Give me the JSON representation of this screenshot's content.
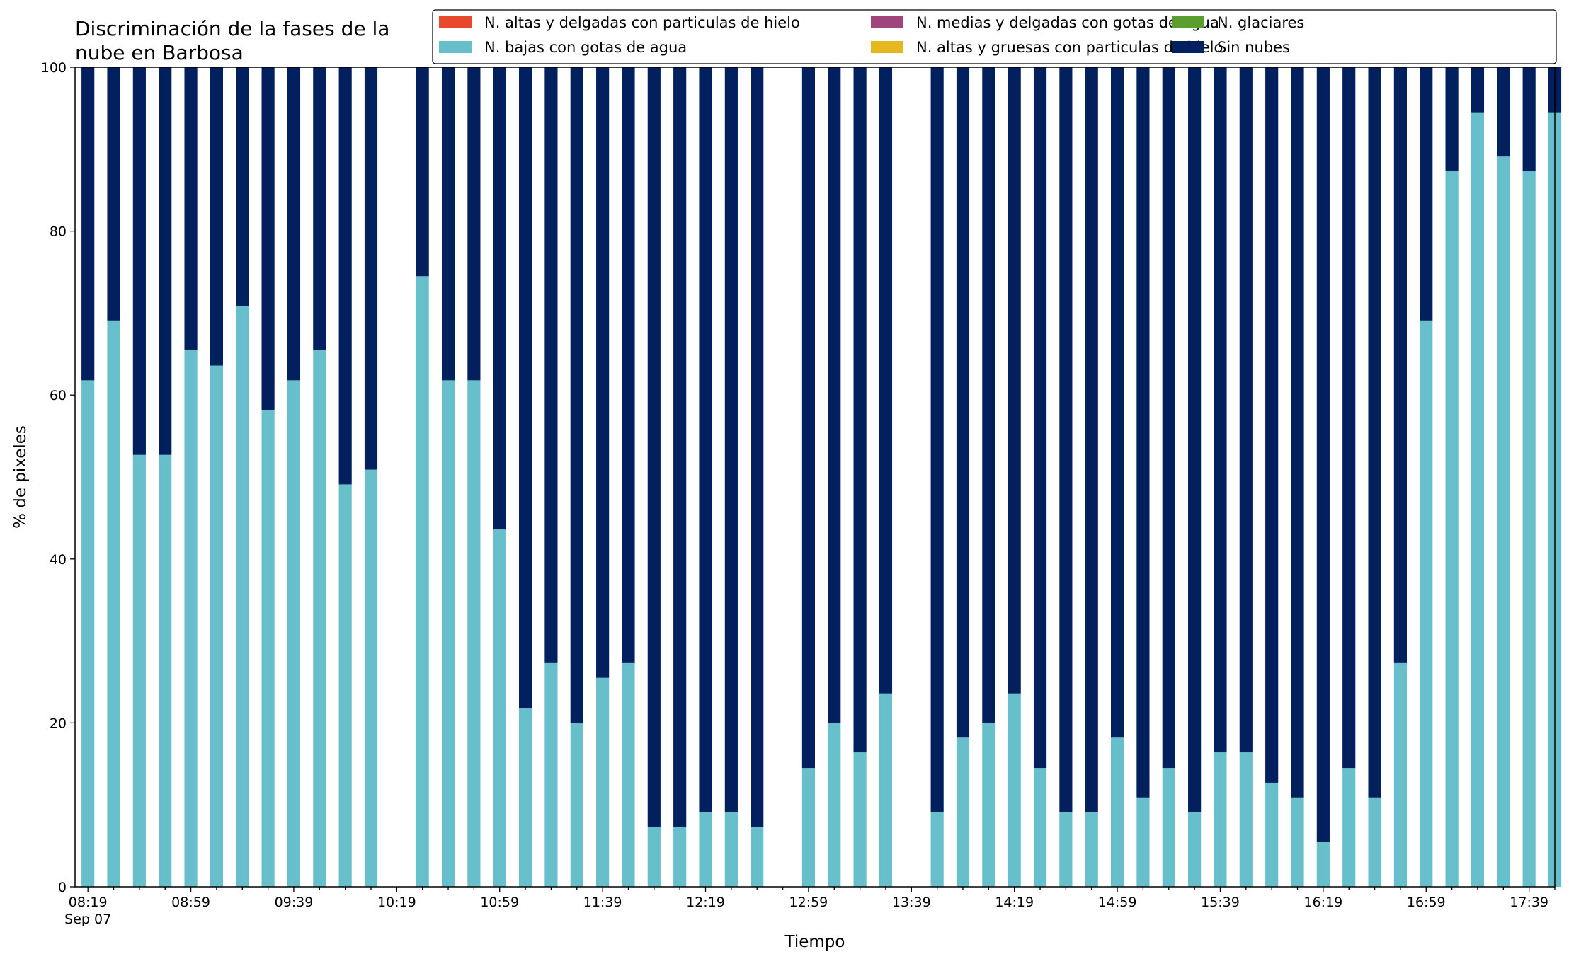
{
  "chart_data": {
    "type": "bar",
    "stacked": true,
    "title_lines": [
      "Discriminación de la fases de la",
      "nube en Barbosa"
    ],
    "xlabel": "Tiempo",
    "ylabel": "% de pixeles",
    "ylim": [
      0,
      100
    ],
    "yticks": [
      0,
      20,
      40,
      60,
      80,
      100
    ],
    "xlim_minutes": [
      494,
      1069
    ],
    "x_tick_labels": [
      {
        "time": "08:19",
        "sub": "Sep 07"
      },
      {
        "time": "08:59",
        "sub": ""
      },
      {
        "time": "09:39",
        "sub": ""
      },
      {
        "time": "10:19",
        "sub": ""
      },
      {
        "time": "10:59",
        "sub": ""
      },
      {
        "time": "11:39",
        "sub": ""
      },
      {
        "time": "12:19",
        "sub": ""
      },
      {
        "time": "12:59",
        "sub": ""
      },
      {
        "time": "13:39",
        "sub": ""
      },
      {
        "time": "14:19",
        "sub": ""
      },
      {
        "time": "14:59",
        "sub": ""
      },
      {
        "time": "15:39",
        "sub": ""
      },
      {
        "time": "16:19",
        "sub": ""
      },
      {
        "time": "16:59",
        "sub": ""
      },
      {
        "time": "17:39",
        "sub": ""
      }
    ],
    "legend_placement": "top, above plot (3 columns)",
    "legend": [
      {
        "name": "N. altas y delgadas con particulas de hielo",
        "color": "#e8482c"
      },
      {
        "name": "N. bajas con gotas de agua",
        "color": "#66bfcb"
      },
      {
        "name": "N. medias y delgadas con gotas de agua",
        "color": "#a0457b"
      },
      {
        "name": "N. altas y gruesas con particulas de hielo",
        "color": "#e6b820"
      },
      {
        "name": "N. glaciares",
        "color": "#5a9e2e"
      },
      {
        "name": "Sin nubes",
        "color": "#021f5e"
      }
    ],
    "series": [
      {
        "name": "N. bajas con gotas de agua",
        "color": "#66bfcb",
        "x": [
          "08:19",
          "08:29",
          "08:39",
          "08:49",
          "08:59",
          "09:09",
          "09:19",
          "09:29",
          "09:39",
          "09:49",
          "09:59",
          "10:09",
          "10:29",
          "10:39",
          "10:49",
          "10:59",
          "11:09",
          "11:19",
          "11:29",
          "11:39",
          "11:49",
          "11:59",
          "12:09",
          "12:19",
          "12:29",
          "12:39",
          "12:59",
          "13:09",
          "13:19",
          "13:29",
          "13:49",
          "13:59",
          "14:09",
          "14:19",
          "14:29",
          "14:39",
          "14:49",
          "14:59",
          "15:09",
          "15:19",
          "15:29",
          "15:39",
          "15:49",
          "15:59",
          "16:09",
          "16:19",
          "16:29",
          "16:39",
          "16:49",
          "16:59",
          "17:09",
          "17:19",
          "17:29",
          "17:39",
          "17:49"
        ],
        "values": [
          61.8,
          69.1,
          52.7,
          52.7,
          65.5,
          63.6,
          70.9,
          58.2,
          61.8,
          65.5,
          49.1,
          50.9,
          74.5,
          61.8,
          61.8,
          43.6,
          21.8,
          27.3,
          20.0,
          25.5,
          27.3,
          7.3,
          7.3,
          9.1,
          9.1,
          7.3,
          14.5,
          20.0,
          16.4,
          23.6,
          9.1,
          18.2,
          20.0,
          23.6,
          14.5,
          9.1,
          9.1,
          18.2,
          10.9,
          14.5,
          9.1,
          16.4,
          16.4,
          12.7,
          10.9,
          5.5,
          14.5,
          10.9,
          27.3,
          69.1,
          87.3,
          94.5,
          89.1,
          87.3,
          94.5
        ]
      },
      {
        "name": "Sin nubes",
        "color": "#021f5e",
        "x": [
          "08:19",
          "08:29",
          "08:39",
          "08:49",
          "08:59",
          "09:09",
          "09:19",
          "09:29",
          "09:39",
          "09:49",
          "09:59",
          "10:09",
          "10:29",
          "10:39",
          "10:49",
          "10:59",
          "11:09",
          "11:19",
          "11:29",
          "11:39",
          "11:49",
          "11:59",
          "12:09",
          "12:19",
          "12:29",
          "12:39",
          "12:59",
          "13:09",
          "13:19",
          "13:29",
          "13:49",
          "13:59",
          "14:09",
          "14:19",
          "14:29",
          "14:39",
          "14:49",
          "14:59",
          "15:09",
          "15:19",
          "15:29",
          "15:39",
          "15:49",
          "15:59",
          "16:09",
          "16:19",
          "16:29",
          "16:39",
          "16:49",
          "16:59",
          "17:09",
          "17:19",
          "17:29",
          "17:39",
          "17:49"
        ],
        "values": [
          38.2,
          30.9,
          47.3,
          47.3,
          34.5,
          36.4,
          29.1,
          41.8,
          38.2,
          34.5,
          50.9,
          49.1,
          25.5,
          38.2,
          38.2,
          56.4,
          78.2,
          72.7,
          80.0,
          74.5,
          72.7,
          92.7,
          92.7,
          90.9,
          90.9,
          92.7,
          85.5,
          80.0,
          83.6,
          76.4,
          90.9,
          81.8,
          80.0,
          76.4,
          85.5,
          90.9,
          90.9,
          81.8,
          89.1,
          85.5,
          90.9,
          83.6,
          83.6,
          87.3,
          89.1,
          94.5,
          85.5,
          89.1,
          72.7,
          30.9,
          12.7,
          5.5,
          10.9,
          12.7,
          5.5
        ]
      }
    ]
  }
}
